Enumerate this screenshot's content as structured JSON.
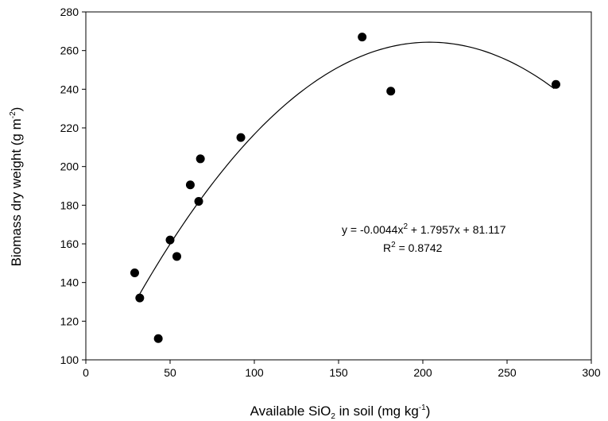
{
  "chart_data": {
    "type": "scatter",
    "title": "",
    "xlabel": "Available SiO2 in soil (mg kg-1)",
    "xlabel_parts": {
      "pre": "Available SiO",
      "sub": "2",
      "mid": " in soil (mg kg",
      "sup": "-1",
      "post": ")"
    },
    "ylabel": "Biomass dry weight (g m-2)",
    "ylabel_parts": {
      "pre": "Biomass dry weight (g m",
      "sup": "-2",
      "post": ")"
    },
    "xlim": [
      0,
      300
    ],
    "ylim": [
      100,
      280
    ],
    "xticks": [
      0,
      50,
      100,
      150,
      200,
      250,
      300
    ],
    "yticks": [
      100,
      120,
      140,
      160,
      180,
      200,
      220,
      240,
      260,
      280
    ],
    "grid": false,
    "legend": "none",
    "series": [
      {
        "type": "scatter",
        "marker_color": "#000000",
        "points": [
          {
            "x": 29,
            "y": 145
          },
          {
            "x": 32,
            "y": 132
          },
          {
            "x": 43,
            "y": 111
          },
          {
            "x": 50,
            "y": 162
          },
          {
            "x": 54,
            "y": 153.5
          },
          {
            "x": 62,
            "y": 190.5
          },
          {
            "x": 67,
            "y": 182
          },
          {
            "x": 68,
            "y": 204
          },
          {
            "x": 92,
            "y": 215
          },
          {
            "x": 164,
            "y": 267
          },
          {
            "x": 181,
            "y": 239
          },
          {
            "x": 279,
            "y": 242.5
          }
        ]
      }
    ],
    "fit": {
      "type": "quadratic",
      "coefficients": {
        "a": -0.0044,
        "b": 1.7957,
        "c": 81.117
      },
      "x_range": [
        31,
        278
      ],
      "line_color": "#000000"
    },
    "annotation": {
      "equation_parts": {
        "pre": "y = -0.0044x",
        "sup": "2",
        "post": " + 1.7957x + 81.117"
      },
      "r2_parts": {
        "pre": "R",
        "sup": "2",
        "post": " = 0.8742"
      }
    }
  }
}
